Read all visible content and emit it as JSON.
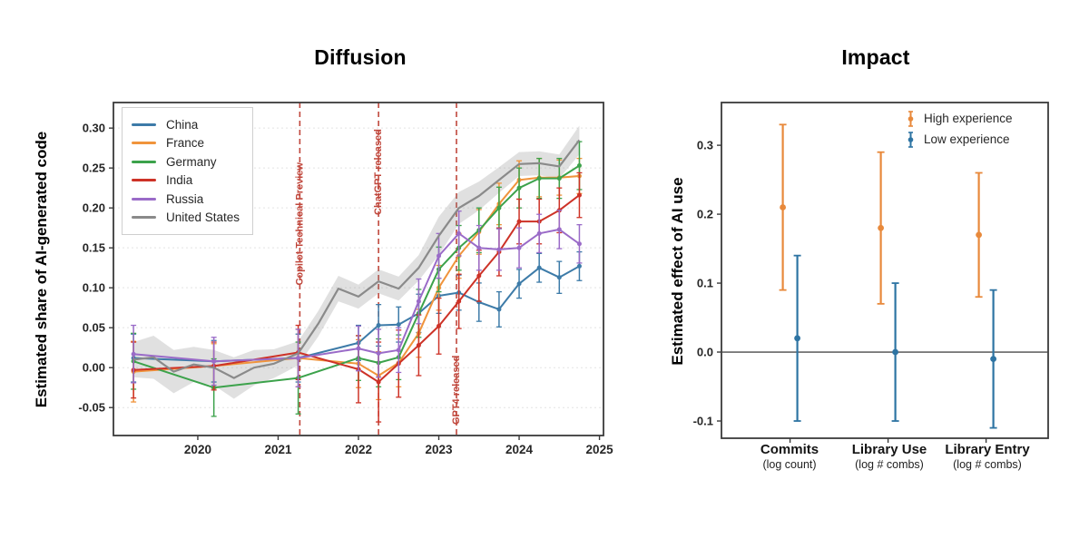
{
  "page": {
    "background": "#ffffff"
  },
  "chart_data": [
    {
      "type": "line",
      "title": "Diffusion",
      "xlabel": "",
      "ylabel": "Estimated share of AI-generated code",
      "xlim": [
        2018.95,
        2025.05
      ],
      "ylim": [
        -0.085,
        0.332
      ],
      "grid": "horizontal",
      "legend_position": "upper-left",
      "xticks": [
        {
          "v": 2020,
          "label": "2020"
        },
        {
          "v": 2021,
          "label": "2021"
        },
        {
          "v": 2022,
          "label": "2022"
        },
        {
          "v": 2023,
          "label": "2023"
        },
        {
          "v": 2024,
          "label": "2024"
        },
        {
          "v": 2025,
          "label": "2025"
        }
      ],
      "yticks": [
        {
          "v": 0.3,
          "label": "0.30"
        },
        {
          "v": 0.25,
          "label": "0.25"
        },
        {
          "v": 0.2,
          "label": "0.20"
        },
        {
          "v": 0.15,
          "label": "0.15"
        },
        {
          "v": 0.1,
          "label": "0.10"
        },
        {
          "v": 0.05,
          "label": "0.05"
        },
        {
          "v": 0.0,
          "label": "0.00"
        },
        {
          "v": -0.05,
          "label": "-0.05"
        }
      ],
      "event_color": "#c0473c",
      "events": [
        {
          "x": 2021.27,
          "label": "Copilot Technical Preview",
          "label_center_y": 0.18
        },
        {
          "x": 2022.25,
          "label": "ChatGPT released",
          "label_center_y": 0.245
        },
        {
          "x": 2023.22,
          "label": "GPT4 released",
          "label_center_y": -0.028
        }
      ],
      "x": [
        2019.2,
        2020.2,
        2021.25,
        2022.0,
        2022.25,
        2022.5,
        2022.75,
        2023.0,
        2023.25,
        2023.5,
        2023.75,
        2024.0,
        2024.25,
        2024.5,
        2024.75
      ],
      "series": [
        {
          "name": "China",
          "color": "#3d7ba8",
          "y": [
            0.012,
            0.008,
            0.012,
            0.031,
            0.053,
            0.054,
            0.068,
            0.09,
            0.094,
            0.082,
            0.073,
            0.105,
            0.125,
            0.113,
            0.127
          ],
          "err": [
            0.03,
            0.026,
            0.03,
            0.022,
            0.026,
            0.022,
            0.024,
            0.022,
            0.022,
            0.024,
            0.022,
            0.018,
            0.018,
            0.02,
            0.018
          ]
        },
        {
          "name": "France",
          "color": "#f0943c",
          "y": [
            -0.005,
            0.002,
            0.012,
            0.005,
            -0.01,
            0.006,
            0.043,
            0.1,
            0.14,
            0.17,
            0.205,
            0.235,
            0.238,
            0.238,
            0.24
          ],
          "err": [
            0.038,
            0.028,
            0.036,
            0.03,
            0.03,
            0.03,
            0.03,
            0.028,
            0.028,
            0.028,
            0.026,
            0.024,
            0.024,
            0.022,
            0.022
          ]
        },
        {
          "name": "Germany",
          "color": "#3ca24b",
          "y": [
            0.008,
            -0.025,
            -0.013,
            0.012,
            0.006,
            0.013,
            0.068,
            0.123,
            0.15,
            0.172,
            0.2,
            0.225,
            0.237,
            0.237,
            0.253
          ],
          "err": [
            0.035,
            0.036,
            0.045,
            0.028,
            0.03,
            0.028,
            0.03,
            0.028,
            0.028,
            0.028,
            0.026,
            0.025,
            0.025,
            0.025,
            0.03
          ]
        },
        {
          "name": "India",
          "color": "#cd3227",
          "y": [
            -0.003,
            0.002,
            0.019,
            -0.002,
            -0.018,
            0.005,
            0.028,
            0.052,
            0.083,
            0.115,
            0.145,
            0.183,
            0.183,
            0.197,
            0.216
          ],
          "err": [
            0.035,
            0.03,
            0.034,
            0.042,
            0.05,
            0.042,
            0.038,
            0.035,
            0.034,
            0.032,
            0.03,
            0.028,
            0.028,
            0.028,
            0.028
          ]
        },
        {
          "name": "Russia",
          "color": "#9a6bc8",
          "y": [
            0.017,
            0.008,
            0.012,
            0.024,
            0.018,
            0.022,
            0.083,
            0.14,
            0.168,
            0.15,
            0.148,
            0.15,
            0.168,
            0.173,
            0.155
          ],
          "err": [
            0.036,
            0.03,
            0.036,
            0.028,
            0.03,
            0.028,
            0.028,
            0.028,
            0.028,
            0.028,
            0.026,
            0.025,
            0.024,
            0.024,
            0.024
          ]
        },
        {
          "name": "United States",
          "color": "#8a8a8a",
          "band_fill": "rgba(130,130,130,0.25)",
          "x": [
            2019.2,
            2019.45,
            2019.7,
            2019.95,
            2020.2,
            2020.45,
            2020.7,
            2020.95,
            2021.25,
            2021.5,
            2021.75,
            2022.0,
            2022.25,
            2022.5,
            2022.75,
            2023.0,
            2023.25,
            2023.5,
            2023.75,
            2024.0,
            2024.25,
            2024.5,
            2024.75
          ],
          "y": [
            0.01,
            0.013,
            -0.005,
            0.004,
            0.0,
            -0.013,
            0.0,
            0.005,
            0.018,
            0.055,
            0.099,
            0.089,
            0.108,
            0.099,
            0.125,
            0.165,
            0.2,
            0.215,
            0.235,
            0.255,
            0.256,
            0.252,
            0.285
          ],
          "band": [
            0.022,
            0.027,
            0.027,
            0.022,
            0.022,
            0.026,
            0.022,
            0.018,
            0.015,
            0.016,
            0.016,
            0.015,
            0.015,
            0.015,
            0.016,
            0.024,
            0.02,
            0.018,
            0.016,
            0.015,
            0.015,
            0.015,
            0.018
          ]
        }
      ]
    },
    {
      "type": "scatter",
      "title": "Impact",
      "xlabel": "",
      "ylabel": "Estimated effect of AI use",
      "ylim": [
        -0.125,
        0.362
      ],
      "zero_line": true,
      "legend_position": "upper-right",
      "yticks": [
        {
          "v": 0.3,
          "label": "0.3"
        },
        {
          "v": 0.2,
          "label": "0.2"
        },
        {
          "v": 0.1,
          "label": "0.1"
        },
        {
          "v": 0.0,
          "label": "0.0"
        },
        {
          "v": -0.1,
          "label": "-0.1"
        }
      ],
      "categories": [
        {
          "label": "Commits",
          "sub": "(log count)"
        },
        {
          "label": "Library Use",
          "sub": "(log # combs)"
        },
        {
          "label": "Library Entry",
          "sub": "(log # combs)"
        }
      ],
      "series": [
        {
          "name": "High experience",
          "color": "#e8893b",
          "offset": -8,
          "values": [
            {
              "y": 0.21,
              "lo": 0.09,
              "hi": 0.33
            },
            {
              "y": 0.18,
              "lo": 0.07,
              "hi": 0.29
            },
            {
              "y": 0.17,
              "lo": 0.08,
              "hi": 0.26
            }
          ]
        },
        {
          "name": "Low experience",
          "color": "#2e74a3",
          "offset": 8,
          "values": [
            {
              "y": 0.02,
              "lo": -0.1,
              "hi": 0.14
            },
            {
              "y": 0.0,
              "lo": -0.1,
              "hi": 0.1
            },
            {
              "y": -0.01,
              "lo": -0.11,
              "hi": 0.09
            }
          ]
        }
      ]
    }
  ]
}
